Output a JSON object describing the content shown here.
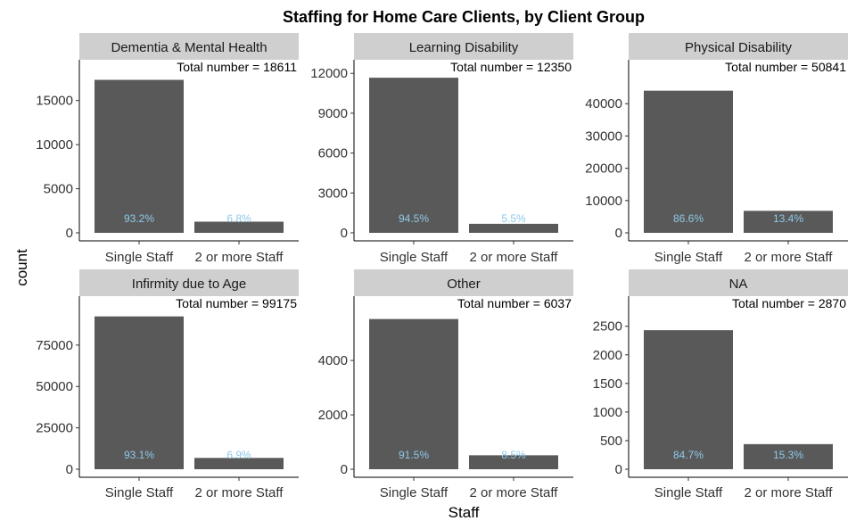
{
  "chart_data": {
    "type": "bar",
    "title": "Staffing for Home Care Clients, by Client Group",
    "xlabel": "Staff",
    "ylabel": "count",
    "categories": [
      "Single Staff",
      "2 or more Staff"
    ],
    "grid": false,
    "colors": {
      "bar": "#595959",
      "percent_label": "#8ec9e8",
      "strip": "#cfcfcf"
    },
    "panels": [
      {
        "name": "Dementia & Mental Health",
        "values": [
          17345,
          1266
        ],
        "percent_labels": [
          "93.2%",
          "6.8%"
        ],
        "total_label": "Total number = 18611",
        "yticks": [
          0,
          5000,
          10000,
          15000
        ],
        "ylim": [
          0,
          18611
        ]
      },
      {
        "name": "Learning Disability",
        "values": [
          11671,
          679
        ],
        "percent_labels": [
          "94.5%",
          "5.5%"
        ],
        "total_label": "Total number = 12350",
        "yticks": [
          0,
          3000,
          6000,
          9000,
          12000
        ],
        "ylim": [
          0,
          12350
        ]
      },
      {
        "name": "Physical Disability",
        "values": [
          44028,
          6813
        ],
        "percent_labels": [
          "86.6%",
          "13.4%"
        ],
        "total_label": "Total number = 50841",
        "yticks": [
          0,
          10000,
          20000,
          30000,
          40000
        ],
        "ylim": [
          0,
          50841
        ]
      },
      {
        "name": "Infirmity due to Age",
        "values": [
          92332,
          6843
        ],
        "percent_labels": [
          "93.1%",
          "6.9%"
        ],
        "total_label": "Total number = 99175",
        "yticks": [
          0,
          25000,
          50000,
          75000
        ],
        "ylim": [
          0,
          99175
        ]
      },
      {
        "name": "Other",
        "values": [
          5524,
          513
        ],
        "percent_labels": [
          "91.5%",
          "8.5%"
        ],
        "total_label": "Total number = 6037",
        "yticks": [
          0,
          2000,
          4000
        ],
        "ylim": [
          0,
          6037
        ]
      },
      {
        "name": "NA",
        "values": [
          2431,
          439
        ],
        "percent_labels": [
          "84.7%",
          "15.3%"
        ],
        "total_label": "Total number = 2870",
        "yticks": [
          0,
          500,
          1000,
          1500,
          2000,
          2500
        ],
        "ylim": [
          0,
          2870
        ]
      }
    ]
  }
}
